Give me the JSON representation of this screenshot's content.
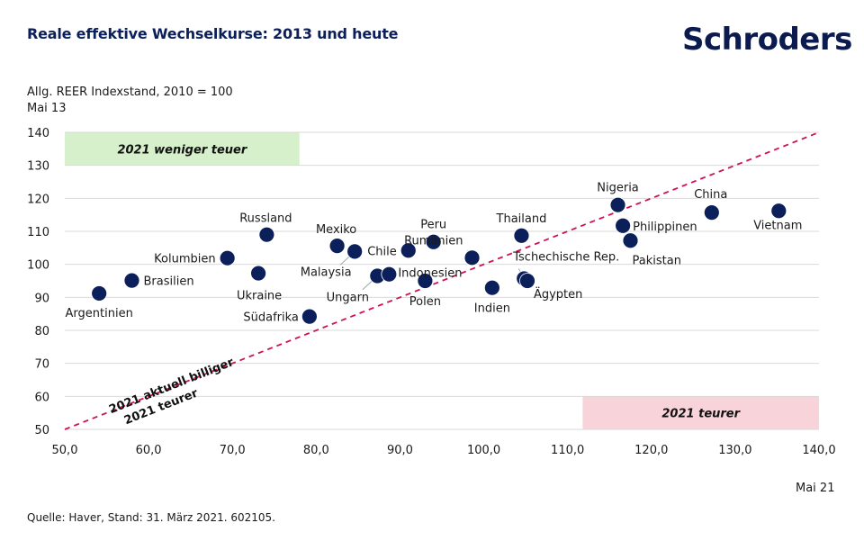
{
  "header": {
    "title": "Reale effektive Wechselkurse: 2013 und heute",
    "brand": "Schroders"
  },
  "axis_labels": {
    "y_title_line1": "Allg. REER Indexstand, 2010 = 100",
    "y_title_line2": "Mai 13",
    "x_title": "Mai 21"
  },
  "footer": {
    "source": "Quelle: Haver, Stand: 31. März 2021. 602105."
  },
  "colors": {
    "dot": "#0b1f5a",
    "diagonal": "#d0105a",
    "green_box": "#d6f0cc",
    "red_box": "#f8d3da",
    "grid": "#d9d9d9"
  },
  "chart_data": {
    "type": "scatter",
    "title": "Reale effektive Wechselkurse: 2013 und heute",
    "xlabel": "Mai 21",
    "ylabel": "Allg. REER Indexstand, 2010 = 100 — Mai 13",
    "xlim": [
      50,
      140
    ],
    "ylim": [
      50,
      140
    ],
    "x_ticks": [
      "50,0",
      "60,0",
      "70,0",
      "80,0",
      "90,0",
      "100,0",
      "110,0",
      "120,0",
      "130,0",
      "140,0"
    ],
    "y_ticks": [
      "50",
      "60",
      "70",
      "80",
      "90",
      "100",
      "110",
      "120",
      "130",
      "140"
    ],
    "grid": "horizontal",
    "reference_line": {
      "type": "diagonal",
      "from": [
        50,
        50
      ],
      "to": [
        140,
        140
      ],
      "style": "dashed"
    },
    "annotations": {
      "top_left_box": "2021 weniger teuer",
      "bottom_right_box": "2021 teurer",
      "diag_above": "2021 aktuell billiger",
      "diag_below": "2021 teurer"
    },
    "points": [
      {
        "label": "Argentinien",
        "x": 54.1,
        "y": 91.2
      },
      {
        "label": "Brasilien",
        "x": 58.0,
        "y": 95.1
      },
      {
        "label": "Kolumbien",
        "x": 69.4,
        "y": 101.9
      },
      {
        "label": "Ukraine",
        "x": 73.1,
        "y": 97.3
      },
      {
        "label": "Russland",
        "x": 74.1,
        "y": 109.0
      },
      {
        "label": "Südafrika",
        "x": 79.2,
        "y": 84.2
      },
      {
        "label": "Mexiko",
        "x": 82.5,
        "y": 105.6
      },
      {
        "label": "Malaysia",
        "x": 84.6,
        "y": 103.9
      },
      {
        "label": "Ungarn",
        "x": 87.3,
        "y": 96.5
      },
      {
        "label": "Indonesien",
        "x": 88.7,
        "y": 97.0
      },
      {
        "label": "Chile",
        "x": 91.0,
        "y": 104.2
      },
      {
        "label": "Polen",
        "x": 93.0,
        "y": 95.0
      },
      {
        "label": "Peru",
        "x": 94.0,
        "y": 106.8
      },
      {
        "label": "Rumänien",
        "x": 98.6,
        "y": 102.0
      },
      {
        "label": "Indien",
        "x": 101.0,
        "y": 92.9
      },
      {
        "label": "Thailand",
        "x": 104.5,
        "y": 108.7
      },
      {
        "label": "Tschechische Rep.",
        "x": 104.8,
        "y": 95.7
      },
      {
        "label": "Ägypten",
        "x": 105.2,
        "y": 95.0
      },
      {
        "label": "Nigeria",
        "x": 116.0,
        "y": 118.0
      },
      {
        "label": "Philippinen",
        "x": 116.6,
        "y": 111.7
      },
      {
        "label": "Pakistan",
        "x": 117.5,
        "y": 107.2
      },
      {
        "label": "China",
        "x": 127.2,
        "y": 115.7
      },
      {
        "label": "Vietnam",
        "x": 135.2,
        "y": 116.2
      }
    ]
  }
}
